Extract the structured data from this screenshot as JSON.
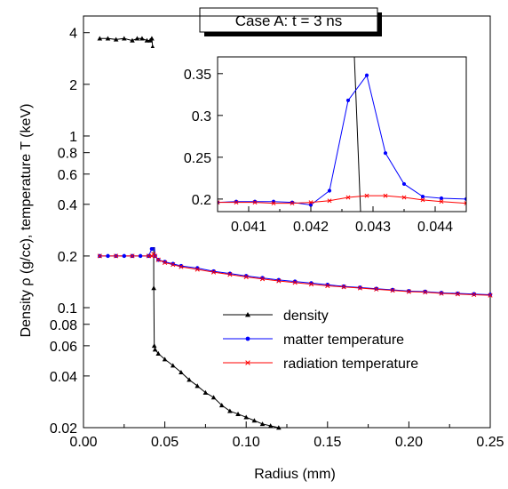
{
  "chart_data": [
    {
      "type": "line",
      "title": "Case A: t = 3 ns",
      "xlabel": "Radius (mm)",
      "ylabel": "Density ρ (g/cc), temperature T (keV)",
      "xlim": [
        0.0,
        0.25
      ],
      "ylim": [
        0.02,
        5.0
      ],
      "yscale": "log",
      "grid": false,
      "legend_position": "lower-right",
      "x_ticks": [
        {
          "value": 0.0,
          "label": "0.00"
        },
        {
          "value": 0.05,
          "label": "0.05"
        },
        {
          "value": 0.1,
          "label": "0.10"
        },
        {
          "value": 0.15,
          "label": "0.15"
        },
        {
          "value": 0.2,
          "label": "0.20"
        },
        {
          "value": 0.25,
          "label": "0.25"
        }
      ],
      "y_ticks": [
        {
          "value": 0.02,
          "label": "0.02"
        },
        {
          "value": 0.04,
          "label": "0.04"
        },
        {
          "value": 0.06,
          "label": "0.06"
        },
        {
          "value": 0.08,
          "label": "0.08"
        },
        {
          "value": 0.1,
          "label": "0.1"
        },
        {
          "value": 0.2,
          "label": "0.2"
        },
        {
          "value": 0.4,
          "label": "0.4"
        },
        {
          "value": 0.6,
          "label": "0.6"
        },
        {
          "value": 0.8,
          "label": "0.8"
        },
        {
          "value": 1,
          "label": "1"
        },
        {
          "value": 2,
          "label": "2"
        },
        {
          "value": 4,
          "label": "4"
        }
      ],
      "series": [
        {
          "name": "density",
          "color": "#000000",
          "marker": "triangle",
          "x": [
            0.01,
            0.015,
            0.02,
            0.025,
            0.03,
            0.033,
            0.036,
            0.039,
            0.041,
            0.042,
            0.0425,
            0.0428,
            0.043,
            0.0432,
            0.0435,
            0.044,
            0.046,
            0.05,
            0.055,
            0.06,
            0.065,
            0.07,
            0.075,
            0.08,
            0.085,
            0.09,
            0.095,
            0.1,
            0.105,
            0.11,
            0.115,
            0.12
          ],
          "values": [
            3.7,
            3.7,
            3.65,
            3.7,
            3.6,
            3.7,
            3.7,
            3.6,
            3.6,
            3.7,
            3.3,
            1.5,
            0.9,
            0.13,
            0.06,
            0.057,
            0.054,
            0.05,
            0.046,
            0.042,
            0.038,
            0.035,
            0.032,
            0.03,
            0.027,
            0.025,
            0.024,
            0.023,
            0.022,
            0.021,
            0.0205,
            0.02
          ]
        },
        {
          "name": "matter temperature",
          "color": "#0000ff",
          "marker": "circle",
          "x": [
            0.01,
            0.015,
            0.02,
            0.025,
            0.03,
            0.035,
            0.04,
            0.042,
            0.0425,
            0.043,
            0.0435,
            0.044,
            0.046,
            0.05,
            0.055,
            0.06,
            0.07,
            0.08,
            0.09,
            0.1,
            0.11,
            0.12,
            0.13,
            0.14,
            0.15,
            0.16,
            0.17,
            0.18,
            0.19,
            0.2,
            0.21,
            0.22,
            0.23,
            0.24,
            0.25
          ],
          "values": [
            0.2,
            0.2,
            0.2,
            0.2,
            0.2,
            0.2,
            0.2,
            0.22,
            0.32,
            0.35,
            0.24,
            0.2,
            0.19,
            0.185,
            0.18,
            0.175,
            0.17,
            0.163,
            0.158,
            0.153,
            0.149,
            0.145,
            0.142,
            0.139,
            0.136,
            0.133,
            0.131,
            0.129,
            0.127,
            0.125,
            0.124,
            0.122,
            0.121,
            0.12,
            0.119
          ]
        },
        {
          "name": "radiation temperature",
          "color": "#ff0000",
          "marker": "x",
          "x": [
            0.01,
            0.02,
            0.03,
            0.04,
            0.042,
            0.043,
            0.044,
            0.046,
            0.05,
            0.055,
            0.06,
            0.07,
            0.08,
            0.09,
            0.1,
            0.11,
            0.12,
            0.13,
            0.14,
            0.15,
            0.16,
            0.17,
            0.18,
            0.19,
            0.2,
            0.21,
            0.22,
            0.23,
            0.24,
            0.25
          ],
          "values": [
            0.2,
            0.2,
            0.2,
            0.2,
            0.2,
            0.205,
            0.2,
            0.19,
            0.183,
            0.178,
            0.173,
            0.167,
            0.161,
            0.156,
            0.151,
            0.147,
            0.143,
            0.14,
            0.137,
            0.134,
            0.132,
            0.13,
            0.128,
            0.126,
            0.124,
            0.123,
            0.121,
            0.12,
            0.119,
            0.118
          ]
        }
      ]
    },
    {
      "type": "line",
      "title": "",
      "xlabel": "",
      "ylabel": "",
      "xlim": [
        0.0405,
        0.0445
      ],
      "ylim": [
        0.185,
        0.37
      ],
      "grid": false,
      "x_ticks": [
        {
          "value": 0.041,
          "label": "0.041"
        },
        {
          "value": 0.042,
          "label": "0.042"
        },
        {
          "value": 0.043,
          "label": "0.043"
        },
        {
          "value": 0.044,
          "label": "0.044"
        }
      ],
      "y_ticks": [
        {
          "value": 0.2,
          "label": "0.2"
        },
        {
          "value": 0.25,
          "label": "0.25"
        },
        {
          "value": 0.3,
          "label": "0.3"
        },
        {
          "value": 0.35,
          "label": "0.35"
        }
      ],
      "series": [
        {
          "name": "density",
          "color": "#000000",
          "marker": "none",
          "x": [
            0.0427,
            0.0428
          ],
          "values": [
            0.37,
            0.185
          ]
        },
        {
          "name": "matter temperature",
          "color": "#0000ff",
          "marker": "circle",
          "x": [
            0.0405,
            0.0408,
            0.0411,
            0.0414,
            0.0417,
            0.042,
            0.0423,
            0.0426,
            0.0429,
            0.0432,
            0.0435,
            0.0438,
            0.0441,
            0.0445
          ],
          "values": [
            0.196,
            0.197,
            0.197,
            0.197,
            0.196,
            0.193,
            0.21,
            0.318,
            0.348,
            0.255,
            0.218,
            0.203,
            0.201,
            0.2
          ]
        },
        {
          "name": "radiation temperature",
          "color": "#ff0000",
          "marker": "x",
          "x": [
            0.0405,
            0.0408,
            0.0411,
            0.0414,
            0.0417,
            0.042,
            0.0423,
            0.0426,
            0.0429,
            0.0432,
            0.0435,
            0.0438,
            0.0441,
            0.0445
          ],
          "values": [
            0.196,
            0.196,
            0.196,
            0.195,
            0.195,
            0.196,
            0.198,
            0.202,
            0.204,
            0.204,
            0.202,
            0.199,
            0.197,
            0.195
          ]
        }
      ]
    }
  ]
}
